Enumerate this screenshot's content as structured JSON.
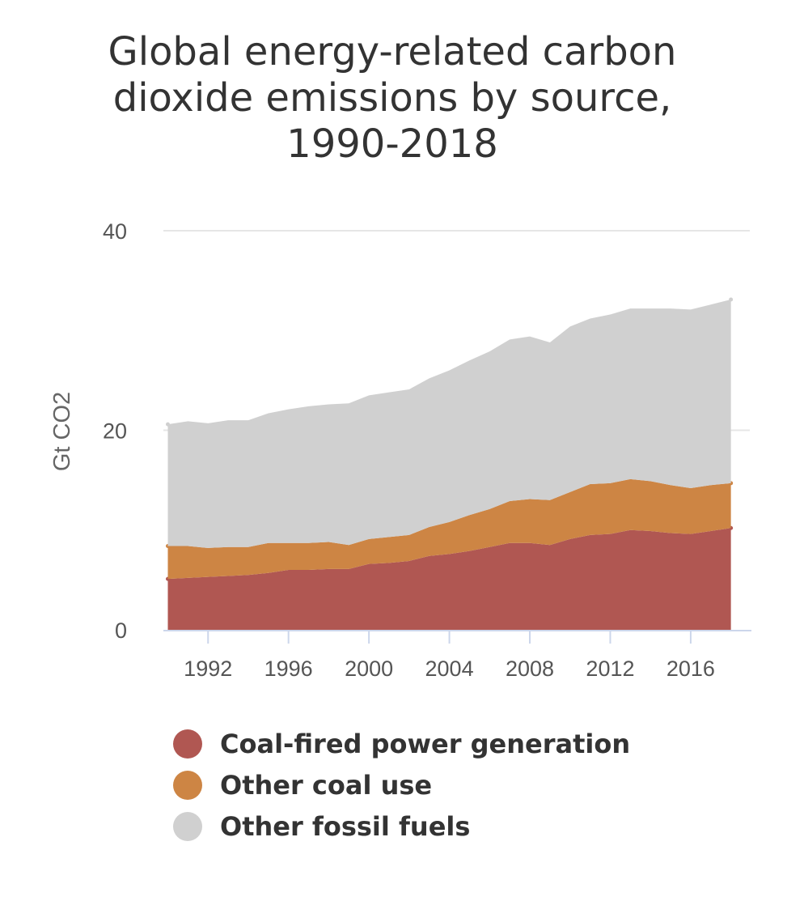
{
  "chart_data": {
    "type": "area",
    "stacked": true,
    "title_lines": [
      "Global energy-related carbon",
      "dioxide emissions by source,",
      "1990-2018"
    ],
    "xlabel": "",
    "ylabel": "Gt CO2",
    "ylim": [
      0,
      40
    ],
    "xlim": [
      1989,
      2019
    ],
    "y_ticks": [
      0,
      20,
      40
    ],
    "x_ticks": [
      1992,
      1996,
      2000,
      2004,
      2008,
      2012,
      2016
    ],
    "x_tick_labels": [
      "1992",
      "1996",
      "2000",
      "2004",
      "2008",
      "2012",
      "2016"
    ],
    "y_tick_labels": [
      "0",
      "20",
      "40"
    ],
    "grid": true,
    "legend_position": "bottom",
    "years": [
      1990,
      1991,
      1992,
      1993,
      1994,
      1995,
      1996,
      1997,
      1998,
      1999,
      2000,
      2001,
      2002,
      2003,
      2004,
      2005,
      2006,
      2007,
      2008,
      2009,
      2010,
      2011,
      2012,
      2013,
      2014,
      2015,
      2016,
      2017,
      2018
    ],
    "series": [
      {
        "name": "Coal-fired power generation",
        "color": "#b05752",
        "values": [
          5.1,
          5.2,
          5.3,
          5.4,
          5.5,
          5.7,
          6.0,
          6.0,
          6.1,
          6.1,
          6.6,
          6.7,
          6.9,
          7.4,
          7.6,
          7.9,
          8.3,
          8.7,
          8.7,
          8.5,
          9.1,
          9.5,
          9.6,
          10.0,
          9.9,
          9.7,
          9.6,
          9.9,
          10.2
        ]
      },
      {
        "name": "Other coal use",
        "color": "#cd8544",
        "values": [
          3.3,
          3.2,
          2.9,
          2.9,
          2.8,
          3.0,
          2.7,
          2.7,
          2.7,
          2.4,
          2.5,
          2.6,
          2.6,
          2.9,
          3.2,
          3.6,
          3.8,
          4.2,
          4.4,
          4.5,
          4.7,
          5.1,
          5.1,
          5.1,
          5.0,
          4.8,
          4.6,
          4.6,
          4.5
        ]
      },
      {
        "name": "Other fossil fuels",
        "color": "#d0d0d0",
        "values": [
          12.2,
          12.5,
          12.5,
          12.7,
          12.7,
          13.0,
          13.4,
          13.7,
          13.8,
          14.2,
          14.4,
          14.5,
          14.6,
          14.9,
          15.2,
          15.5,
          15.8,
          16.2,
          16.3,
          15.8,
          16.6,
          16.6,
          16.9,
          17.1,
          17.3,
          17.7,
          17.9,
          18.1,
          18.4
        ]
      }
    ]
  }
}
